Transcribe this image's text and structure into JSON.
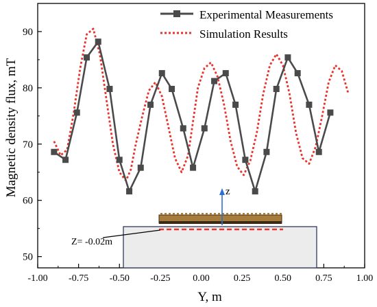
{
  "chart_data": {
    "type": "line",
    "xlabel": "Y, m",
    "ylabel": "Magnetic density flux, mT",
    "xlim": [
      -1.0,
      1.0
    ],
    "ylim": [
      48,
      95
    ],
    "xticks": [
      -1.0,
      -0.75,
      -0.5,
      -0.25,
      0.0,
      0.25,
      0.5,
      0.75,
      1.0
    ],
    "xtick_labels": [
      "-1.00",
      "-0.75",
      "-0.50",
      "-0.25",
      "0.00",
      "0.25",
      "0.50",
      "0.75",
      "1.00"
    ],
    "yticks": [
      50,
      60,
      70,
      80,
      90
    ],
    "ytick_labels": [
      "50",
      "60",
      "70",
      "80",
      "90"
    ],
    "grid": false,
    "legend_position": "top-right",
    "series": [
      {
        "name": "Experimental Measurements",
        "style": "solid-square-markers",
        "color": "#4a4a4a",
        "x": [
          -0.9,
          -0.83,
          -0.76,
          -0.7,
          -0.63,
          -0.56,
          -0.5,
          -0.44,
          -0.37,
          -0.31,
          -0.24,
          -0.18,
          -0.11,
          -0.05,
          0.02,
          0.08,
          0.15,
          0.21,
          0.27,
          0.33,
          0.4,
          0.46,
          0.53,
          0.59,
          0.66,
          0.72,
          0.79
        ],
        "y": [
          68.6,
          67.2,
          75.6,
          85.4,
          88.2,
          79.8,
          67.2,
          61.6,
          65.8,
          77.0,
          82.6,
          79.8,
          72.8,
          65.8,
          72.8,
          81.2,
          82.6,
          77.0,
          67.2,
          61.6,
          68.6,
          79.8,
          85.4,
          82.6,
          77.0,
          68.6,
          75.6
        ]
      },
      {
        "name": "Simulation Results",
        "style": "dotted",
        "color": "#e8332c",
        "x": [
          -0.9,
          -0.86,
          -0.82,
          -0.78,
          -0.74,
          -0.7,
          -0.66,
          -0.62,
          -0.58,
          -0.54,
          -0.5,
          -0.46,
          -0.43,
          -0.4,
          -0.36,
          -0.32,
          -0.28,
          -0.24,
          -0.2,
          -0.16,
          -0.12,
          -0.08,
          -0.05,
          -0.02,
          0.02,
          0.06,
          0.1,
          0.14,
          0.18,
          0.22,
          0.26,
          0.3,
          0.34,
          0.38,
          0.42,
          0.46,
          0.5,
          0.54,
          0.58,
          0.62,
          0.66,
          0.7,
          0.74,
          0.78,
          0.82,
          0.86,
          0.9
        ],
        "y": [
          70.5,
          68.0,
          69.0,
          75.5,
          83.5,
          89.5,
          90.5,
          86.0,
          78.0,
          70.0,
          65.0,
          63.5,
          65.5,
          70.0,
          75.0,
          79.5,
          81.0,
          78.5,
          73.0,
          67.5,
          65.0,
          68.0,
          74.0,
          80.0,
          83.5,
          84.5,
          82.0,
          77.0,
          70.5,
          66.0,
          64.5,
          67.0,
          72.0,
          79.0,
          84.0,
          86.0,
          84.0,
          79.0,
          72.0,
          67.5,
          66.5,
          69.5,
          75.0,
          81.0,
          84.0,
          83.0,
          79.0
        ]
      }
    ]
  },
  "inset": {
    "axis_label": "z",
    "line_label": "Z= -0.02m",
    "colors": {
      "board": "#a67c3d",
      "board_dark": "#3a2a15",
      "block_fill": "#ececec",
      "block_stroke": "#2f3a5a",
      "arrow": "#2e6fcf",
      "measure_line": "#e8332c"
    }
  }
}
